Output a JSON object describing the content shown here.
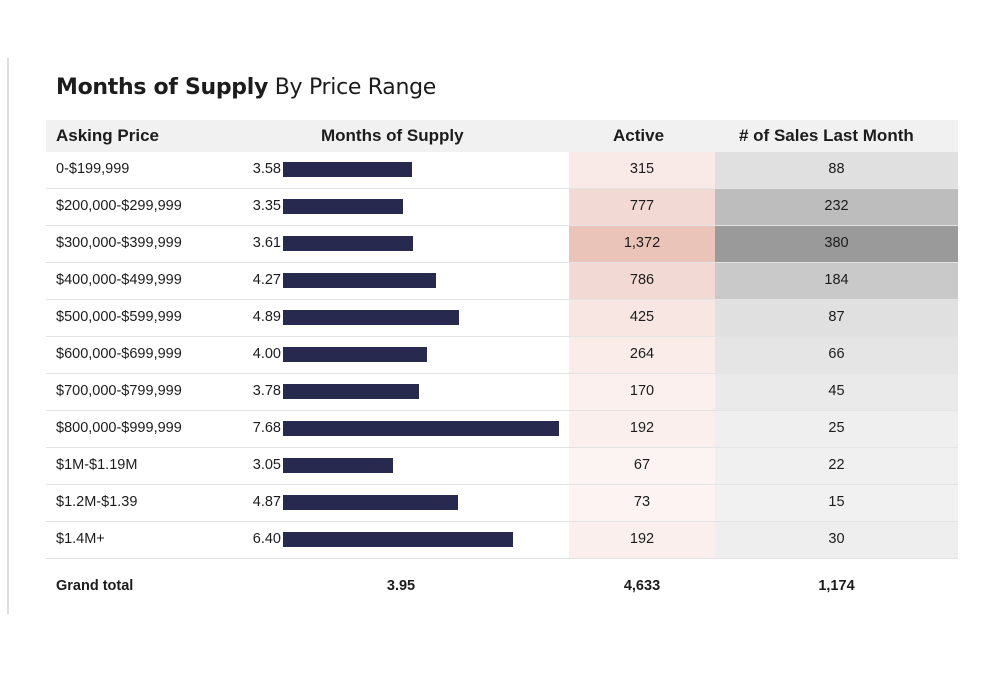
{
  "title": {
    "bold": "Months of Supply",
    "light": "By Price Range"
  },
  "columns": {
    "asking": "Asking Price",
    "months": "Months of Supply",
    "active": "Active",
    "sales": "# of Sales Last Month"
  },
  "chart_data": {
    "type": "bar",
    "title": "Months of Supply By Price Range",
    "categories": [
      "0-$199,999",
      "$200,000-$299,999",
      "$300,000-$399,999",
      "$400,000-$499,999",
      "$500,000-$599,999",
      "$600,000-$699,999",
      "$700,000-$799,999",
      "$800,000-$999,999",
      "$1M-$1.19M",
      "$1.2M-$1.39",
      "$1.4M+"
    ],
    "series": [
      {
        "name": "Months of Supply",
        "values": [
          3.58,
          3.35,
          3.61,
          4.27,
          4.89,
          4.0,
          3.78,
          7.68,
          3.05,
          4.87,
          6.4
        ]
      },
      {
        "name": "Active",
        "values": [
          315,
          777,
          1372,
          786,
          425,
          264,
          170,
          192,
          67,
          73,
          192
        ]
      },
      {
        "name": "# of Sales Last Month",
        "values": [
          88,
          232,
          380,
          184,
          87,
          66,
          45,
          25,
          22,
          15,
          30
        ]
      }
    ],
    "xlim": [
      0,
      7.68
    ]
  },
  "rows": [
    {
      "price": "0-$199,999",
      "months": "3.58",
      "active": "315",
      "sales": "88"
    },
    {
      "price": "$200,000-$299,999",
      "months": "3.35",
      "active": "777",
      "sales": "232"
    },
    {
      "price": "$300,000-$399,999",
      "months": "3.61",
      "active": "1,372",
      "sales": "380"
    },
    {
      "price": "$400,000-$499,999",
      "months": "4.27",
      "active": "786",
      "sales": "184"
    },
    {
      "price": "$500,000-$599,999",
      "months": "4.89",
      "active": "425",
      "sales": "87"
    },
    {
      "price": "$600,000-$699,999",
      "months": "4.00",
      "active": "264",
      "sales": "66"
    },
    {
      "price": "$700,000-$799,999",
      "months": "3.78",
      "active": "170",
      "sales": "45"
    },
    {
      "price": "$800,000-$999,999",
      "months": "7.68",
      "active": "192",
      "sales": "25"
    },
    {
      "price": "$1M-$1.19M",
      "months": "3.05",
      "active": "67",
      "sales": "22"
    },
    {
      "price": "$1.2M-$1.39",
      "months": "4.87",
      "active": "73",
      "sales": "15"
    },
    {
      "price": "$1.4M+",
      "months": "6.40",
      "active": "192",
      "sales": "30"
    }
  ],
  "total": {
    "label": "Grand total",
    "months": "3.95",
    "active": "4,633",
    "sales": "1,174"
  },
  "colors": {
    "bar": "#272a4e",
    "active_heat_low": "#fdf6f5",
    "active_heat_high": "#eac3b9",
    "sales_heat_low": "#f5f5f5",
    "sales_heat_high": "#9a9a9a",
    "header_bg": "#f1f1f1"
  }
}
